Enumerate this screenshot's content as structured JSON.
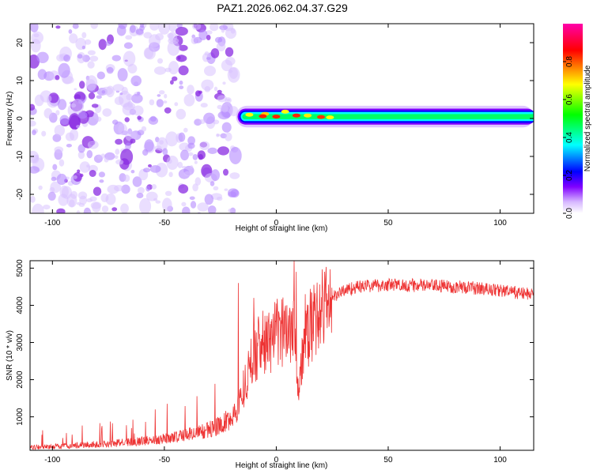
{
  "title": "PAZ1.2026.062.04.37.G29",
  "chart_data": [
    {
      "type": "heatmap",
      "name": "spectrogram",
      "xlabel": "Height of straight line (km)",
      "ylabel": "Frequency (Hz)",
      "xlim": [
        -110,
        115
      ],
      "ylim": [
        -25,
        25
      ],
      "xticks": [
        -100,
        -50,
        0,
        50,
        100
      ],
      "yticks": [
        -20,
        -10,
        0,
        10,
        20
      ],
      "noise_region_x": [
        -110,
        -18
      ],
      "signal_band": {
        "x_start": -18,
        "x_end": 115,
        "center_hz": 0.5,
        "half_width_hz": 1.5
      },
      "colorbar": {
        "label": "Normalized spectral amplitude",
        "range": [
          0,
          1
        ],
        "ticks": [
          0.0,
          0.2,
          0.4,
          0.6,
          0.8
        ],
        "tick_labels": [
          "0.0",
          "0.2",
          "0.4",
          "0.6",
          "0.8"
        ],
        "stops": [
          "#ffffff",
          "#d7b8ff",
          "#8000ff",
          "#0000ff",
          "#00ffff",
          "#00ff00",
          "#ffff00",
          "#ff0000",
          "#ff00aa"
        ]
      }
    },
    {
      "type": "line",
      "name": "snr",
      "xlabel": "Height of straight line (km)",
      "ylabel": "SNR (10 * v/v)",
      "xlim": [
        -110,
        115
      ],
      "ylim": [
        100,
        5200
      ],
      "xticks": [
        -100,
        -50,
        0,
        50,
        100
      ],
      "yticks": [
        1000,
        2000,
        3000,
        4000,
        5000
      ],
      "color": "#ee3333",
      "envelope_x": [
        -110,
        -100,
        -90,
        -80,
        -70,
        -60,
        -50,
        -40,
        -30,
        -25,
        -20,
        -17,
        -15,
        -12,
        -10,
        -8,
        -5,
        -2,
        0,
        3,
        6,
        8,
        10,
        12,
        15,
        18,
        20,
        25,
        30,
        35,
        40,
        50,
        60,
        70,
        80,
        90,
        100,
        110,
        115
      ],
      "envelope_y": [
        180,
        200,
        230,
        260,
        300,
        350,
        420,
        520,
        650,
        780,
        950,
        1300,
        1700,
        2300,
        2700,
        2900,
        3000,
        3100,
        3200,
        3300,
        3450,
        3700,
        1600,
        2800,
        3400,
        3700,
        3900,
        4200,
        4400,
        4480,
        4520,
        4550,
        4540,
        4520,
        4500,
        4460,
        4400,
        4320,
        4300
      ],
      "spikes": [
        {
          "x": -17,
          "y": 4600
        },
        {
          "x": -10,
          "y": 4200
        },
        {
          "x": -8,
          "y": 3700
        },
        {
          "x": 8,
          "y": 5200
        },
        {
          "x": 9,
          "y": 4900
        },
        {
          "x": 10,
          "y": 1450
        },
        {
          "x": 13,
          "y": 4300
        },
        {
          "x": 15,
          "y": 3800
        },
        {
          "x": 18,
          "y": 4000
        }
      ]
    }
  ]
}
